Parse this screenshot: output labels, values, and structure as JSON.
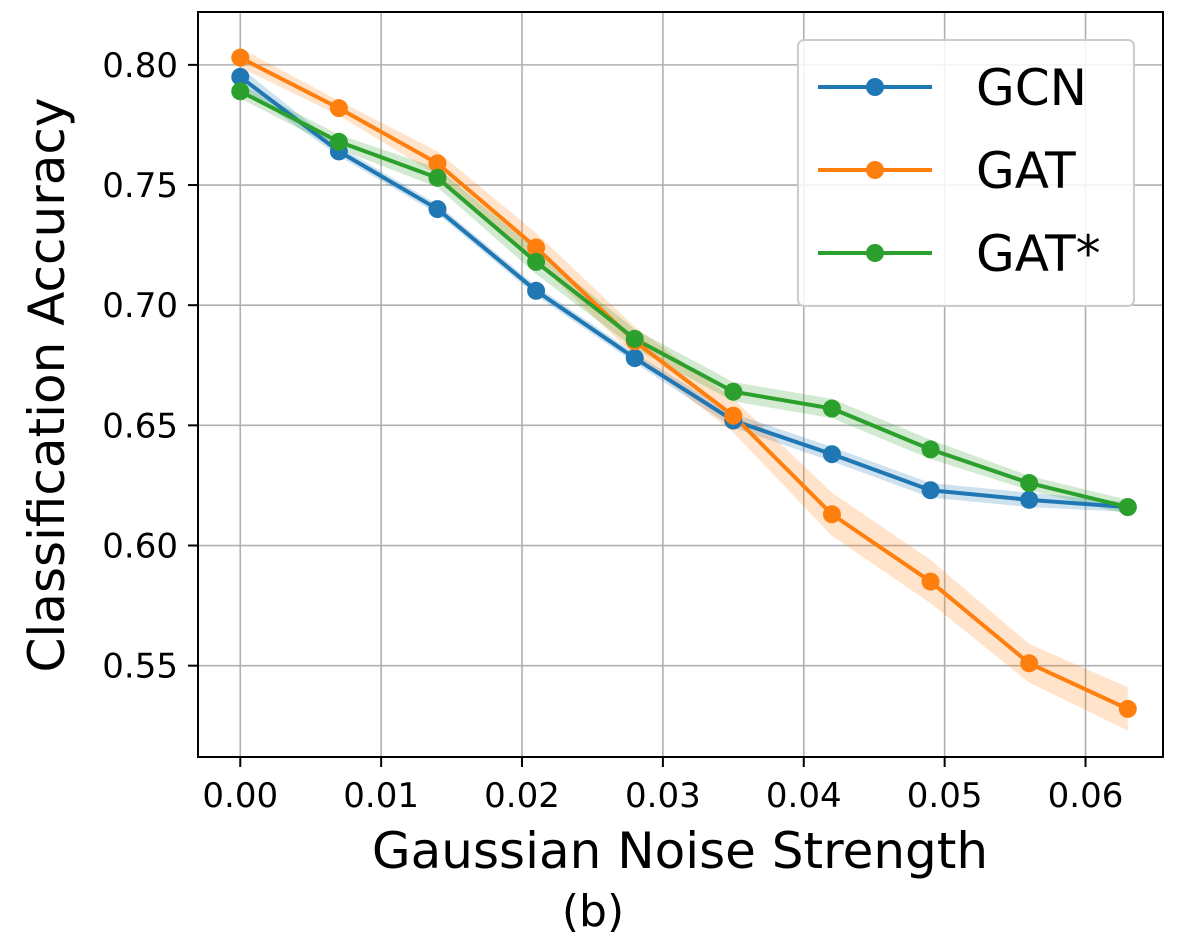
{
  "chart_data": {
    "type": "line",
    "title": "",
    "xlabel": "Gaussian Noise Strength",
    "ylabel": "Classification Accuracy",
    "caption": "(b)",
    "xlim": [
      -0.003,
      0.0655
    ],
    "ylim": [
      0.512,
      0.822
    ],
    "x": [
      0.0,
      0.007,
      0.014,
      0.021,
      0.028,
      0.035,
      0.042,
      0.049,
      0.056,
      0.063
    ],
    "xticks": [
      0.0,
      0.01,
      0.02,
      0.03,
      0.04,
      0.05,
      0.06
    ],
    "xtick_labels": [
      "0.00",
      "0.01",
      "0.02",
      "0.03",
      "0.04",
      "0.05",
      "0.06"
    ],
    "yticks": [
      0.55,
      0.6,
      0.65,
      0.7,
      0.75,
      0.8
    ],
    "ytick_labels": [
      "0.55",
      "0.60",
      "0.65",
      "0.70",
      "0.75",
      "0.80"
    ],
    "grid": true,
    "legend_position": "top-right",
    "series": [
      {
        "name": "GCN",
        "color": "#1f77b4",
        "values": [
          0.795,
          0.764,
          0.74,
          0.706,
          0.678,
          0.652,
          0.638,
          0.623,
          0.619,
          0.616
        ],
        "band": [
          0.004,
          0.002,
          0.002,
          0.002,
          0.002,
          0.003,
          0.003,
          0.003,
          0.003,
          0.002
        ]
      },
      {
        "name": "GAT",
        "color": "#ff7f0e",
        "values": [
          0.803,
          0.782,
          0.759,
          0.724,
          0.685,
          0.654,
          0.613,
          0.585,
          0.551,
          0.532
        ],
        "band": [
          0.004,
          0.003,
          0.005,
          0.006,
          0.006,
          0.007,
          0.009,
          0.009,
          0.008,
          0.009
        ]
      },
      {
        "name": "GAT*",
        "color": "#2ca02c",
        "values": [
          0.789,
          0.768,
          0.753,
          0.718,
          0.686,
          0.664,
          0.657,
          0.64,
          0.626,
          0.616
        ],
        "band": [
          0.003,
          0.003,
          0.004,
          0.005,
          0.004,
          0.004,
          0.004,
          0.004,
          0.003,
          0.003
        ]
      }
    ]
  }
}
